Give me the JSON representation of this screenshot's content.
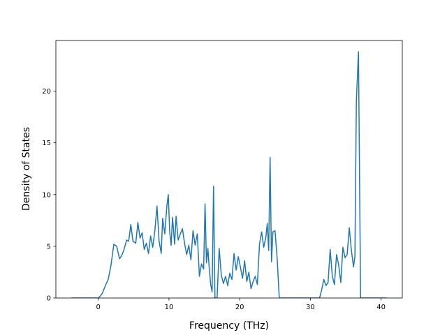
{
  "chart_data": {
    "type": "line",
    "title": "",
    "xlabel": "Frequency (THz)",
    "ylabel": "Density of States",
    "xlim": [
      -6,
      43
    ],
    "ylim": [
      0,
      24.9
    ],
    "xticks": [
      0,
      10,
      20,
      30,
      40
    ],
    "yticks": [
      0,
      5,
      10,
      15,
      20
    ],
    "grid": false,
    "legend": "none",
    "series": [
      {
        "color": "#1f77b4",
        "x": [
          -3.8,
          0,
          0.3,
          0.6,
          1.0,
          1.4,
          1.8,
          2.2,
          2.6,
          3.0,
          3.3,
          3.6,
          4.0,
          4.3,
          4.6,
          4.9,
          5.3,
          5.6,
          5.9,
          6.2,
          6.5,
          6.8,
          7.1,
          7.4,
          7.7,
          8.0,
          8.3,
          8.6,
          8.9,
          9.1,
          9.4,
          9.7,
          9.9,
          10.1,
          10.3,
          10.5,
          10.8,
          11.0,
          11.3,
          11.6,
          11.9,
          12.2,
          12.5,
          12.8,
          13.1,
          13.4,
          13.7,
          14.0,
          14.3,
          14.6,
          14.9,
          15.1,
          15.3,
          15.5,
          15.7,
          15.9,
          16.1,
          16.3,
          16.5,
          16.8,
          17.1,
          17.4,
          17.7,
          18.0,
          18.3,
          18.6,
          18.9,
          19.2,
          19.5,
          19.8,
          20.1,
          20.4,
          20.7,
          21.0,
          21.3,
          21.6,
          21.9,
          22.2,
          22.5,
          22.8,
          23.1,
          23.4,
          23.7,
          23.9,
          24.1,
          24.3,
          24.5,
          24.7,
          25.0,
          25.3,
          25.6,
          28.0,
          31.3,
          31.6,
          31.9,
          32.2,
          32.5,
          32.8,
          33.1,
          33.4,
          33.7,
          34.0,
          34.3,
          34.6,
          34.9,
          35.2,
          35.5,
          35.8,
          36.1,
          36.3,
          36.5,
          36.8,
          37.1,
          40.8
        ],
        "y": [
          0,
          0,
          0.2,
          0.5,
          1.2,
          1.8,
          3.2,
          5.2,
          5.0,
          3.8,
          4.1,
          4.6,
          5.6,
          5.5,
          7.1,
          5.5,
          5.3,
          7.3,
          5.8,
          6.3,
          4.7,
          5.3,
          4.3,
          6.0,
          4.9,
          6.5,
          8.9,
          5.5,
          4.3,
          7.7,
          6.2,
          8.9,
          10.0,
          6.4,
          5.1,
          7.8,
          5.2,
          7.9,
          5.6,
          6.2,
          6.7,
          5.3,
          4.2,
          5.1,
          3.7,
          6.5,
          5.1,
          6.2,
          2.1,
          3.3,
          2.8,
          9.1,
          3.4,
          4.8,
          2.8,
          1.3,
          0.6,
          10.8,
          0,
          0,
          4.8,
          2.2,
          1.4,
          2.1,
          1.2,
          2.4,
          1.8,
          4.3,
          2.7,
          4.0,
          3.0,
          1.9,
          3.6,
          1.6,
          2.5,
          0.9,
          1.6,
          2.1,
          1.3,
          5.2,
          6.4,
          4.9,
          5.9,
          7.2,
          4.6,
          13.6,
          3.5,
          6.4,
          6.5,
          3.8,
          0,
          0,
          0,
          0.8,
          1.8,
          1.2,
          1.5,
          4.7,
          2.1,
          1.3,
          4.2,
          3.2,
          1.5,
          4.9,
          3.9,
          4.2,
          6.8,
          4.6,
          3.0,
          4.1,
          19.0,
          23.8,
          0,
          0
        ]
      }
    ]
  }
}
